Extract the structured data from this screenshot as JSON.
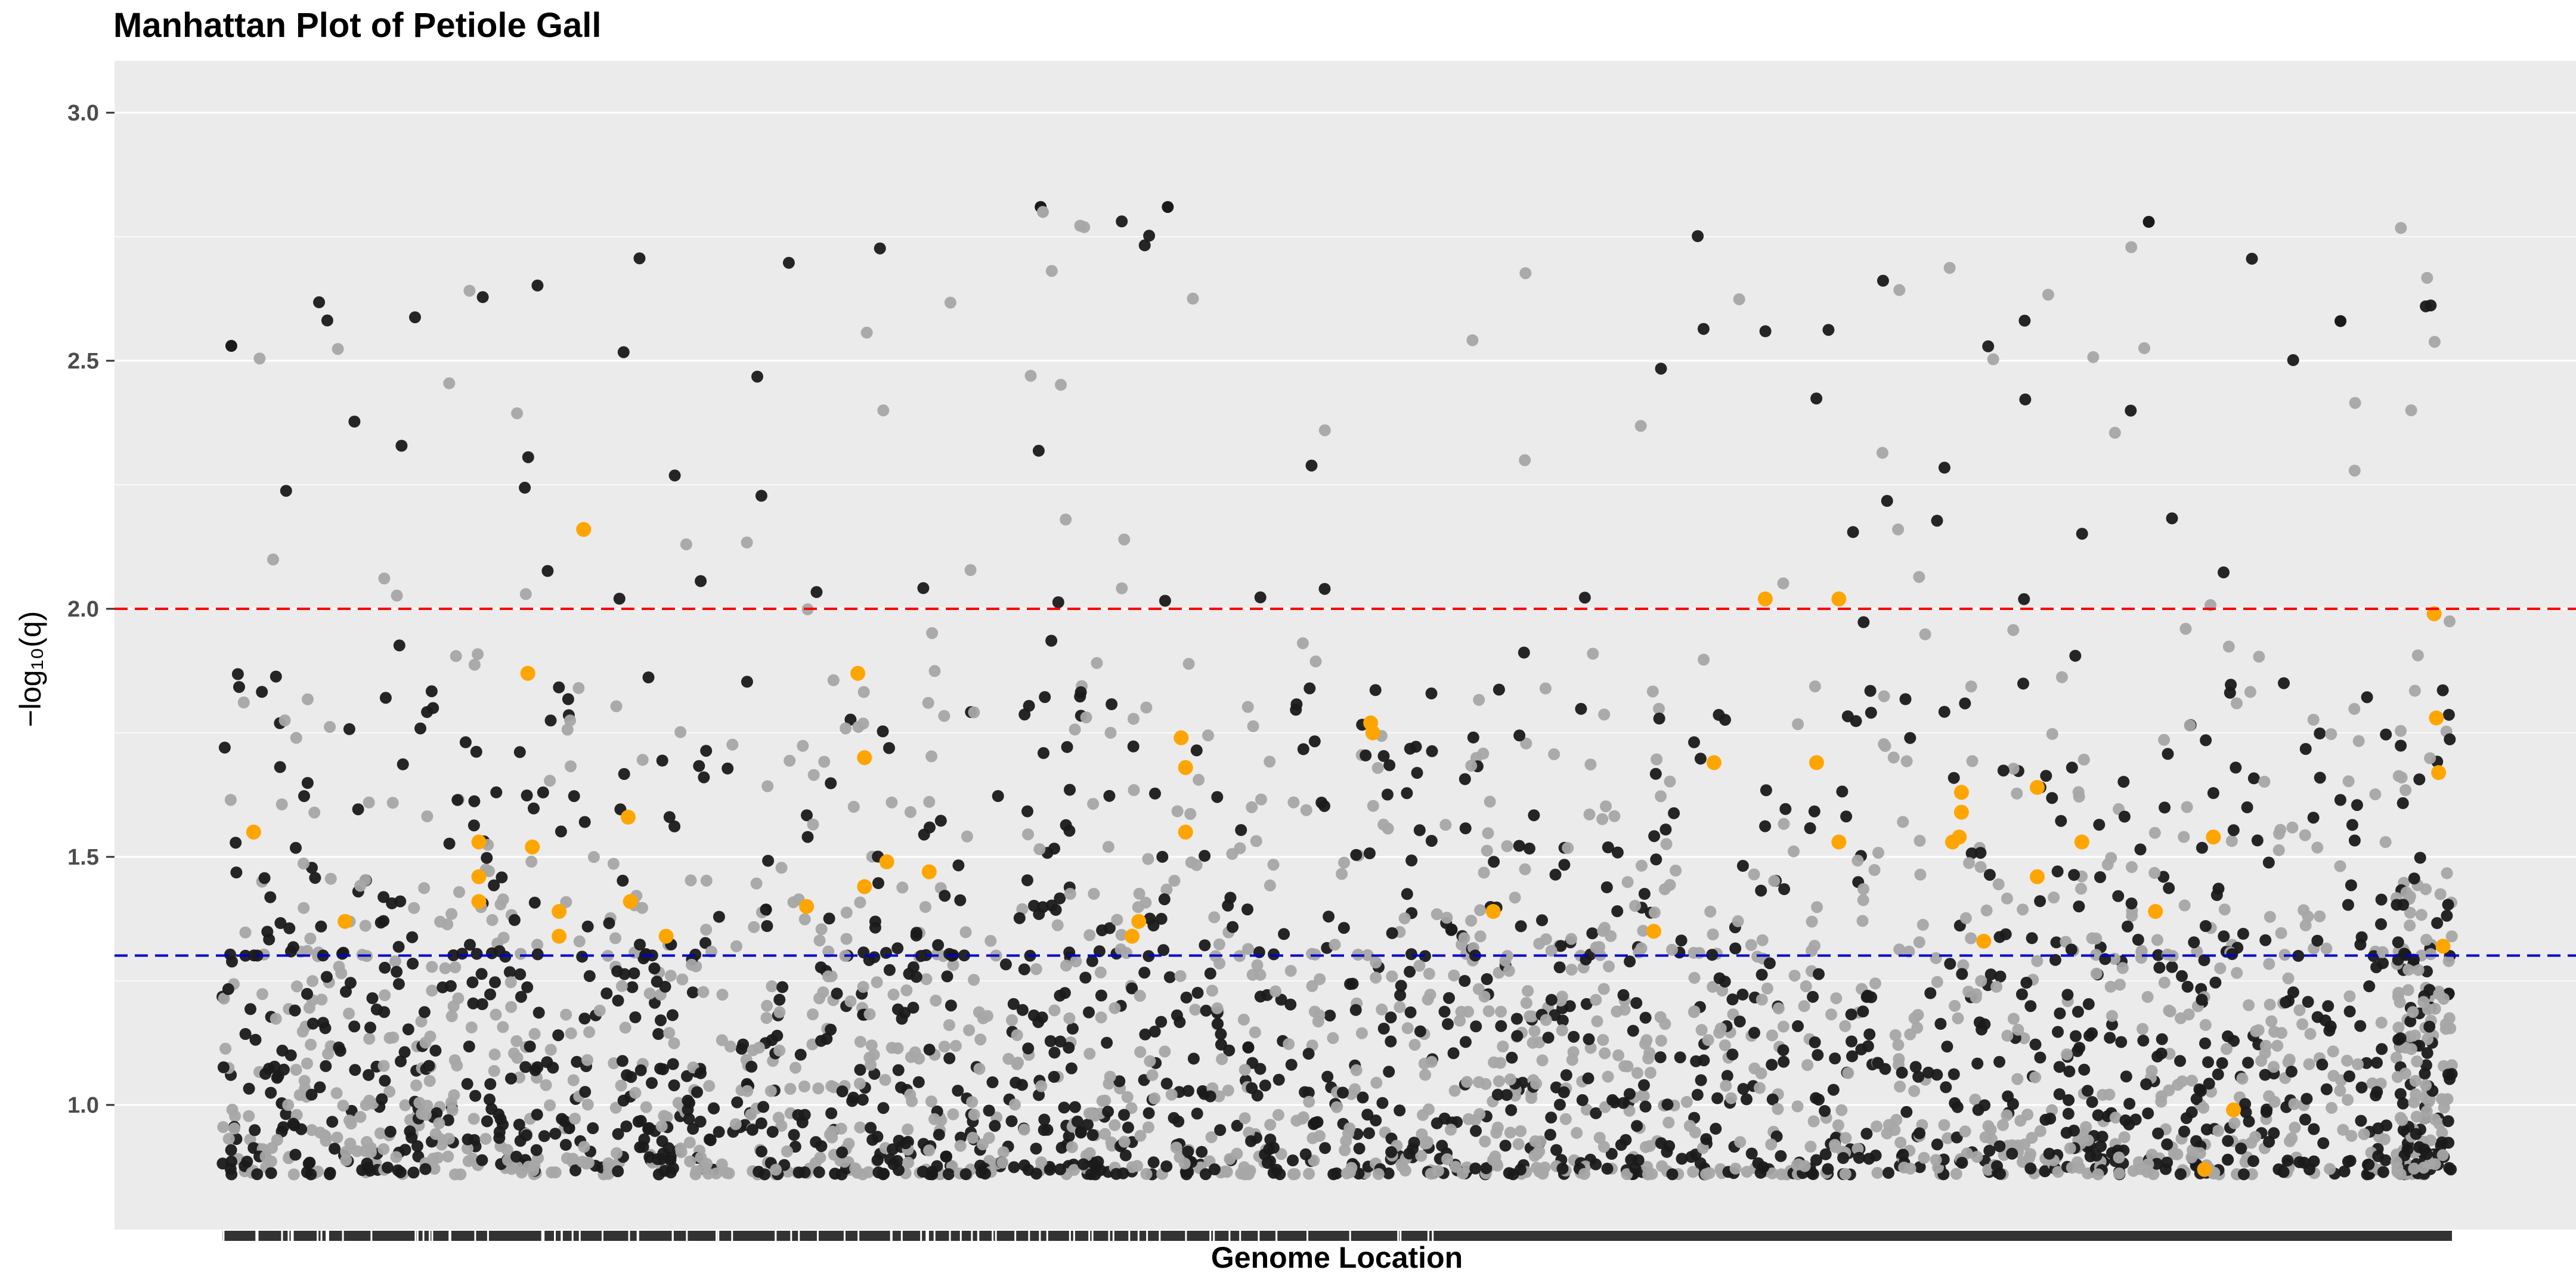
{
  "chart_data": {
    "type": "scatter",
    "title": "Manhattan Plot of Petiole Gall",
    "xlabel": "Genome Location",
    "ylabel": "−log₁₀(q)",
    "ylim": [
      0.75,
      3.1
    ],
    "y_ticks": [
      1.0,
      1.5,
      2.0,
      2.5,
      3.0
    ],
    "y_tick_labels": [
      "1.0",
      "1.5",
      "2.0",
      "2.5",
      "3.0"
    ],
    "x_range": [
      0,
      1
    ],
    "grid": true,
    "legend": "none",
    "thresholds": [
      {
        "name": "q = 0.01",
        "value": 2.0,
        "color": "#ff0000",
        "style": "dashed"
      },
      {
        "name": "q = 0.05",
        "value": 1.30103,
        "color": "#0000cc",
        "style": "dashed"
      }
    ],
    "colors": {
      "panel_background": "#ebebeb",
      "grid": "#ffffff",
      "point_dark": "#1a1a1a",
      "point_light": "#a6a6a6",
      "highlight": "#ffa500"
    },
    "x_axis_note": "dense rug of per-marker tick marks along the x axis; no numeric x tick labels",
    "series": [
      {
        "key": "highlighted",
        "color": "#ffa500",
        "points": [
          [
            0.014,
            1.55
          ],
          [
            0.055,
            1.37
          ],
          [
            0.115,
            1.53
          ],
          [
            0.115,
            1.46
          ],
          [
            0.115,
            1.41
          ],
          [
            0.137,
            1.87
          ],
          [
            0.139,
            1.52
          ],
          [
            0.151,
            1.39
          ],
          [
            0.151,
            1.34
          ],
          [
            0.162,
            2.16
          ],
          [
            0.182,
            1.58
          ],
          [
            0.183,
            1.41
          ],
          [
            0.199,
            1.34
          ],
          [
            0.262,
            1.4
          ],
          [
            0.285,
            1.87
          ],
          [
            0.288,
            1.7
          ],
          [
            0.288,
            1.44
          ],
          [
            0.298,
            1.49
          ],
          [
            0.317,
            1.47
          ],
          [
            0.408,
            1.34
          ],
          [
            0.411,
            1.37
          ],
          [
            0.43,
            1.74
          ],
          [
            0.432,
            1.68
          ],
          [
            0.432,
            1.55
          ],
          [
            0.515,
            1.77
          ],
          [
            0.516,
            1.75
          ],
          [
            0.57,
            1.39
          ],
          [
            0.642,
            1.35
          ],
          [
            0.669,
            1.69
          ],
          [
            0.692,
            2.02
          ],
          [
            0.715,
            1.69
          ],
          [
            0.725,
            1.53
          ],
          [
            0.725,
            2.02
          ],
          [
            0.78,
            1.63
          ],
          [
            0.78,
            1.59
          ],
          [
            0.779,
            1.54
          ],
          [
            0.776,
            1.53
          ],
          [
            0.79,
            1.33
          ],
          [
            0.814,
            1.64
          ],
          [
            0.814,
            1.46
          ],
          [
            0.834,
            1.53
          ],
          [
            0.867,
            1.39
          ],
          [
            0.889,
            0.87
          ],
          [
            0.893,
            1.54
          ],
          [
            0.902,
            0.99
          ],
          [
            0.992,
            1.99
          ],
          [
            0.993,
            1.78
          ],
          [
            0.994,
            1.67
          ],
          [
            0.996,
            1.32
          ]
        ]
      }
    ]
  }
}
